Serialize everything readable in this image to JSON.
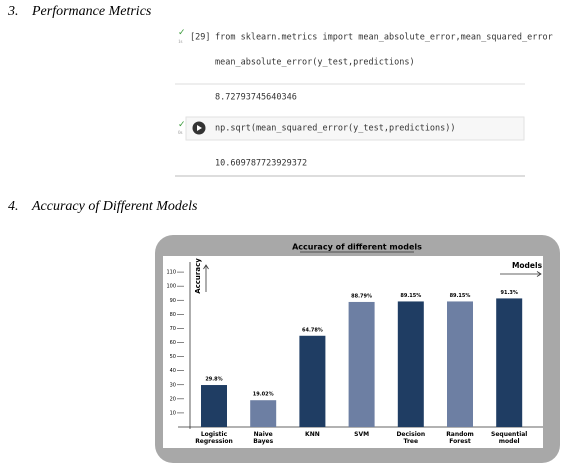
{
  "sections": [
    {
      "number": "3.",
      "title": "Performance Metrics"
    },
    {
      "number": "4.",
      "title": "Accuracy of Different Models"
    }
  ],
  "cells": [
    {
      "count": "[29]",
      "code": [
        "from sklearn.metrics import mean_absolute_error,mean_squared_error",
        "mean_absolute_error(y_test,predictions)"
      ],
      "output": "8.72793745640346"
    },
    {
      "code": [
        "np.sqrt(mean_squared_error(y_test,predictions))"
      ],
      "output": "10.609787723929372"
    }
  ],
  "chart_data": {
    "type": "bar",
    "title": "Accuracy of different models",
    "y_label": "Accuracy",
    "x_label": "Models",
    "categories": [
      "Logistic Regression",
      "Naive Bayes",
      "KNN",
      "SVM",
      "Decision Tree",
      "Random Forest",
      "Sequential model"
    ],
    "values": [
      29.8,
      19.02,
      64.78,
      88.79,
      89.15,
      89.15,
      91.3
    ],
    "value_labels": [
      "29.8%",
      "19.02%",
      "64.78%",
      "88.79%",
      "89.15%",
      "89.15%",
      "91.3%"
    ],
    "colors": [
      "#1f3d63",
      "#6d7fa3",
      "#1f3d63",
      "#6d7fa3",
      "#1f3d63",
      "#6d7fa3",
      "#1f3d63"
    ],
    "ylim": [
      0,
      120
    ],
    "yticks": [
      10,
      20,
      30,
      40,
      50,
      60,
      70,
      80,
      90,
      100,
      110
    ]
  }
}
